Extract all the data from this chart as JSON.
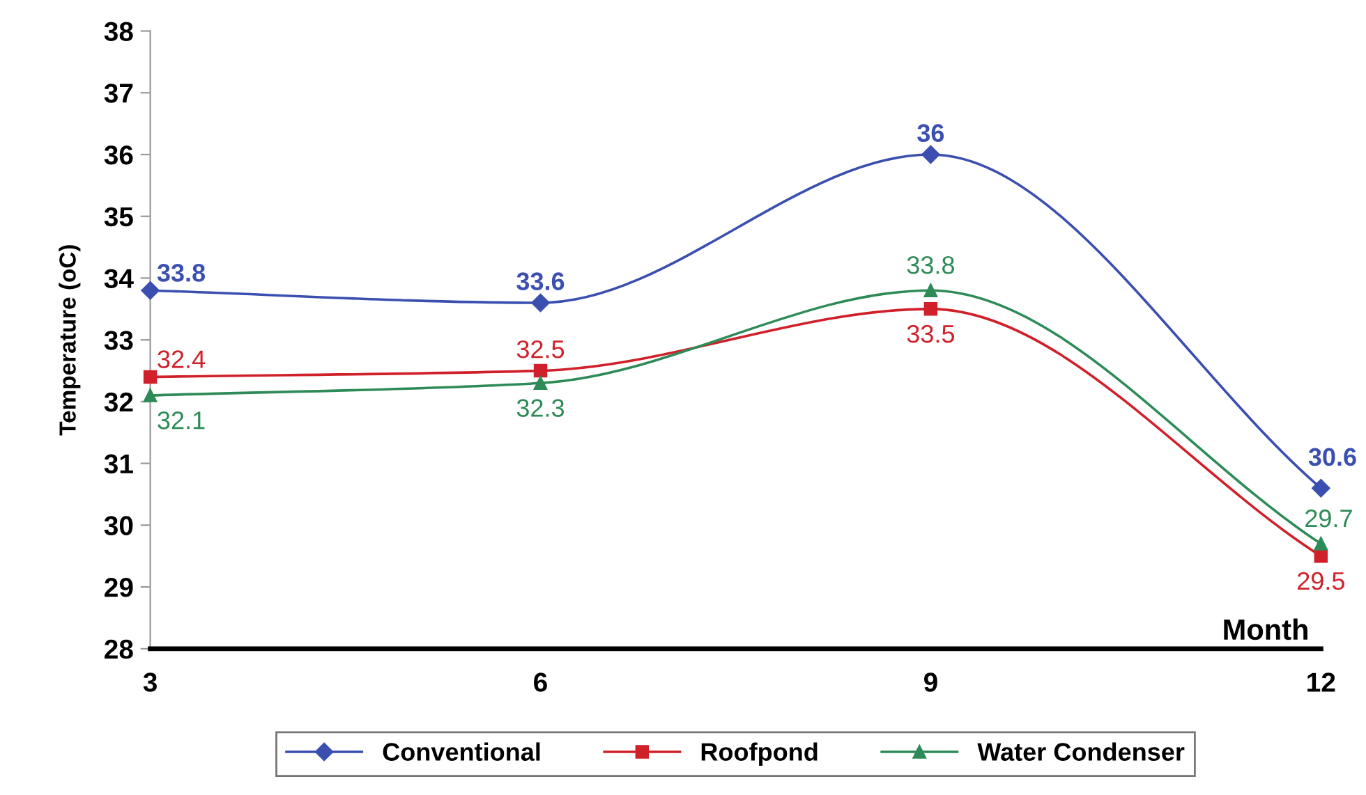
{
  "chart_data": {
    "type": "line",
    "xlabel": "Month",
    "ylabel": "Temperature (oC)",
    "x": [
      3,
      6,
      9,
      12
    ],
    "xlim": [
      3,
      12
    ],
    "xticks": [
      3,
      6,
      9,
      12
    ],
    "ylim": [
      28,
      38
    ],
    "yticks": [
      28,
      29,
      30,
      31,
      32,
      33,
      34,
      35,
      36,
      37,
      38
    ],
    "series": [
      {
        "name": "Conventional",
        "color": "#3a4fb0",
        "marker": "diamond",
        "values": [
          33.8,
          33.6,
          36,
          30.6
        ]
      },
      {
        "name": "Roofpond",
        "color": "#d0202a",
        "marker": "square",
        "values": [
          32.4,
          32.5,
          33.5,
          29.5
        ]
      },
      {
        "name": "Water Condenser",
        "color": "#2e8b57",
        "marker": "triangle",
        "values": [
          32.1,
          32.3,
          33.8,
          29.7
        ]
      }
    ],
    "data_labels": true,
    "grid": false,
    "legend": "bottom"
  }
}
